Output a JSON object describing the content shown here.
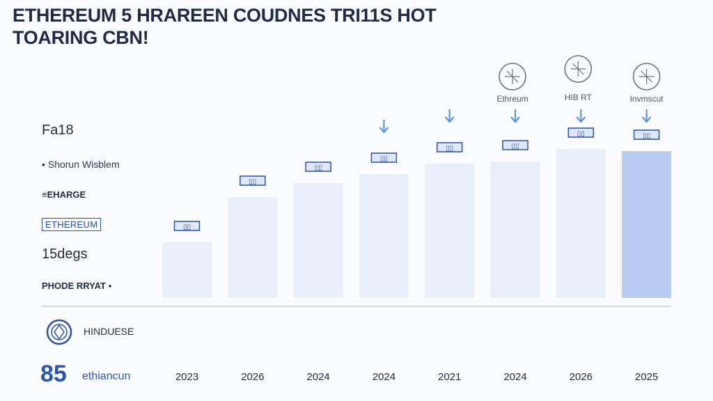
{
  "title_lines": [
    "ETHEREUM 5 HRAREEN COUDNES TRI11S HOT",
    "TOARING CBN!"
  ],
  "side_labels": {
    "top": "Fa18",
    "item1": "Shorun Wisblem",
    "item2": "EHARGE",
    "item3": "ETHEREUM",
    "item4": "15degs",
    "item5": "PHODE RRYAT"
  },
  "footer": {
    "label": "HINDUESE",
    "number": "85",
    "word": "ethiancun"
  },
  "colors": {
    "bar": "#e8effb",
    "bar_last": "#b9cdf3",
    "badge_border": "#2a4fa8",
    "arrow": "#5b95e6",
    "axis": "#b9bfcb"
  },
  "chart_data": {
    "type": "bar",
    "categories": [
      "2023",
      "2026",
      "2024",
      "2024",
      "2021",
      "2024",
      "2026",
      "2025"
    ],
    "values": [
      80,
      145,
      165,
      178,
      193,
      196,
      214,
      211
    ],
    "ylim": [
      0,
      230
    ],
    "grid": false,
    "bar_badges": [
      "▯▯",
      "▯▯",
      "▯▯",
      "▯▯",
      "▯▯",
      "▯▯",
      "▯▯",
      "▯▯"
    ],
    "arrows_over": [
      3,
      4,
      5,
      6,
      7
    ],
    "top_icons": [
      {
        "index": 5,
        "label": "Ethreum",
        "icon": "coin-icon"
      },
      {
        "index": 6,
        "label": "HIB RT",
        "icon": "globe-icon"
      },
      {
        "index": 7,
        "label": "Invmscut",
        "icon": "wallet-icon"
      }
    ]
  }
}
